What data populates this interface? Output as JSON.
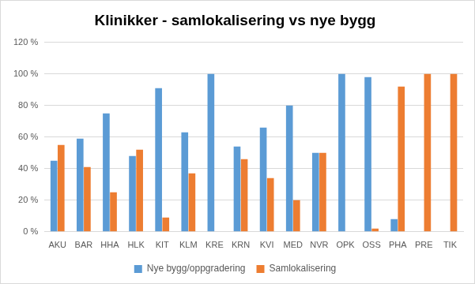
{
  "chart_data": {
    "type": "bar",
    "title": "Klinikker - samlokalisering vs nye bygg",
    "categories": [
      "AKU",
      "BAR",
      "HHA",
      "HLK",
      "KIT",
      "KLM",
      "KRE",
      "KRN",
      "KVI",
      "MED",
      "NVR",
      "OPK",
      "OSS",
      "PHA",
      "PRE",
      "TIK"
    ],
    "series": [
      {
        "name": "Nye bygg/oppgradering",
        "color": "#5b9bd5",
        "values": [
          45,
          59,
          75,
          48,
          91,
          63,
          100,
          54,
          66,
          80,
          50,
          100,
          98,
          8,
          0,
          0
        ]
      },
      {
        "name": "Samlokalisering",
        "color": "#ed7d31",
        "values": [
          55,
          41,
          25,
          52,
          9,
          37,
          0,
          46,
          34,
          20,
          50,
          0,
          2,
          92,
          100,
          100
        ]
      }
    ],
    "ylim": [
      0,
      120
    ],
    "yticks": [
      {
        "value": 0,
        "label": "0 %"
      },
      {
        "value": 20,
        "label": "20 %"
      },
      {
        "value": 40,
        "label": "40 %"
      },
      {
        "value": 60,
        "label": "60 %"
      },
      {
        "value": 80,
        "label": "80 %"
      },
      {
        "value": 100,
        "label": "100 %"
      },
      {
        "value": 120,
        "label": "120 %"
      }
    ],
    "grid": true,
    "legend": "bottom"
  }
}
